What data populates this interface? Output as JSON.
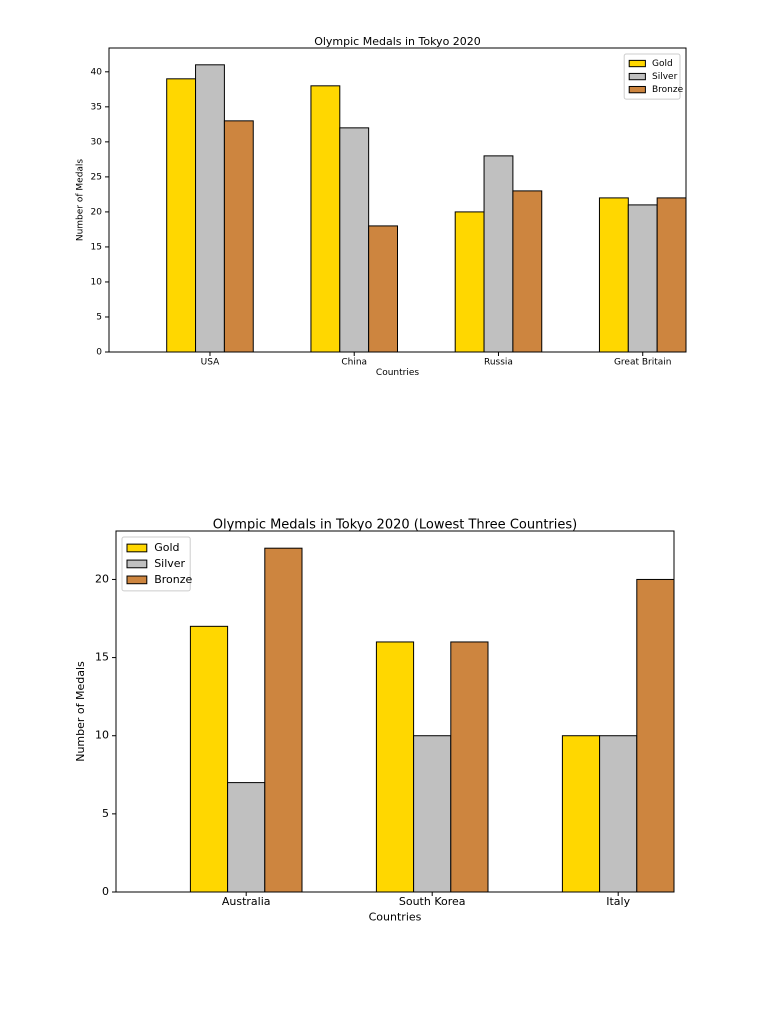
{
  "chart_data": [
    {
      "type": "bar",
      "title": "Olympic Medals in Tokyo 2020",
      "x_label": "Countries",
      "y_label": "Number of Medals",
      "categories": [
        "USA",
        "China",
        "Russia",
        "Great Britain"
      ],
      "series": [
        {
          "name": "Gold",
          "color": "#FFD700",
          "values": [
            39,
            38,
            20,
            22
          ]
        },
        {
          "name": "Silver",
          "color": "#C0C0C0",
          "values": [
            41,
            32,
            28,
            21
          ]
        },
        {
          "name": "Bronze",
          "color": "#CD853F",
          "values": [
            33,
            18,
            23,
            22
          ]
        }
      ],
      "ylim": [
        0,
        43.4
      ],
      "yticks": [
        0,
        5,
        10,
        15,
        20,
        25,
        30,
        35,
        40
      ],
      "legend": "upper right"
    },
    {
      "type": "bar",
      "title": "Olympic Medals in Tokyo 2020 (Lowest Three Countries)",
      "x_label": "Countries",
      "y_label": "Number of Medals",
      "categories": [
        "Australia",
        "South Korea",
        "Italy"
      ],
      "series": [
        {
          "name": "Gold",
          "color": "#FFD700",
          "values": [
            17,
            16,
            10
          ]
        },
        {
          "name": "Silver",
          "color": "#C0C0C0",
          "values": [
            7,
            10,
            10
          ]
        },
        {
          "name": "Bronze",
          "color": "#CD853F",
          "values": [
            22,
            16,
            20
          ]
        }
      ],
      "ylim": [
        0,
        23.1
      ],
      "yticks": [
        0,
        5,
        10,
        15,
        20
      ],
      "legend": "upper left"
    }
  ]
}
